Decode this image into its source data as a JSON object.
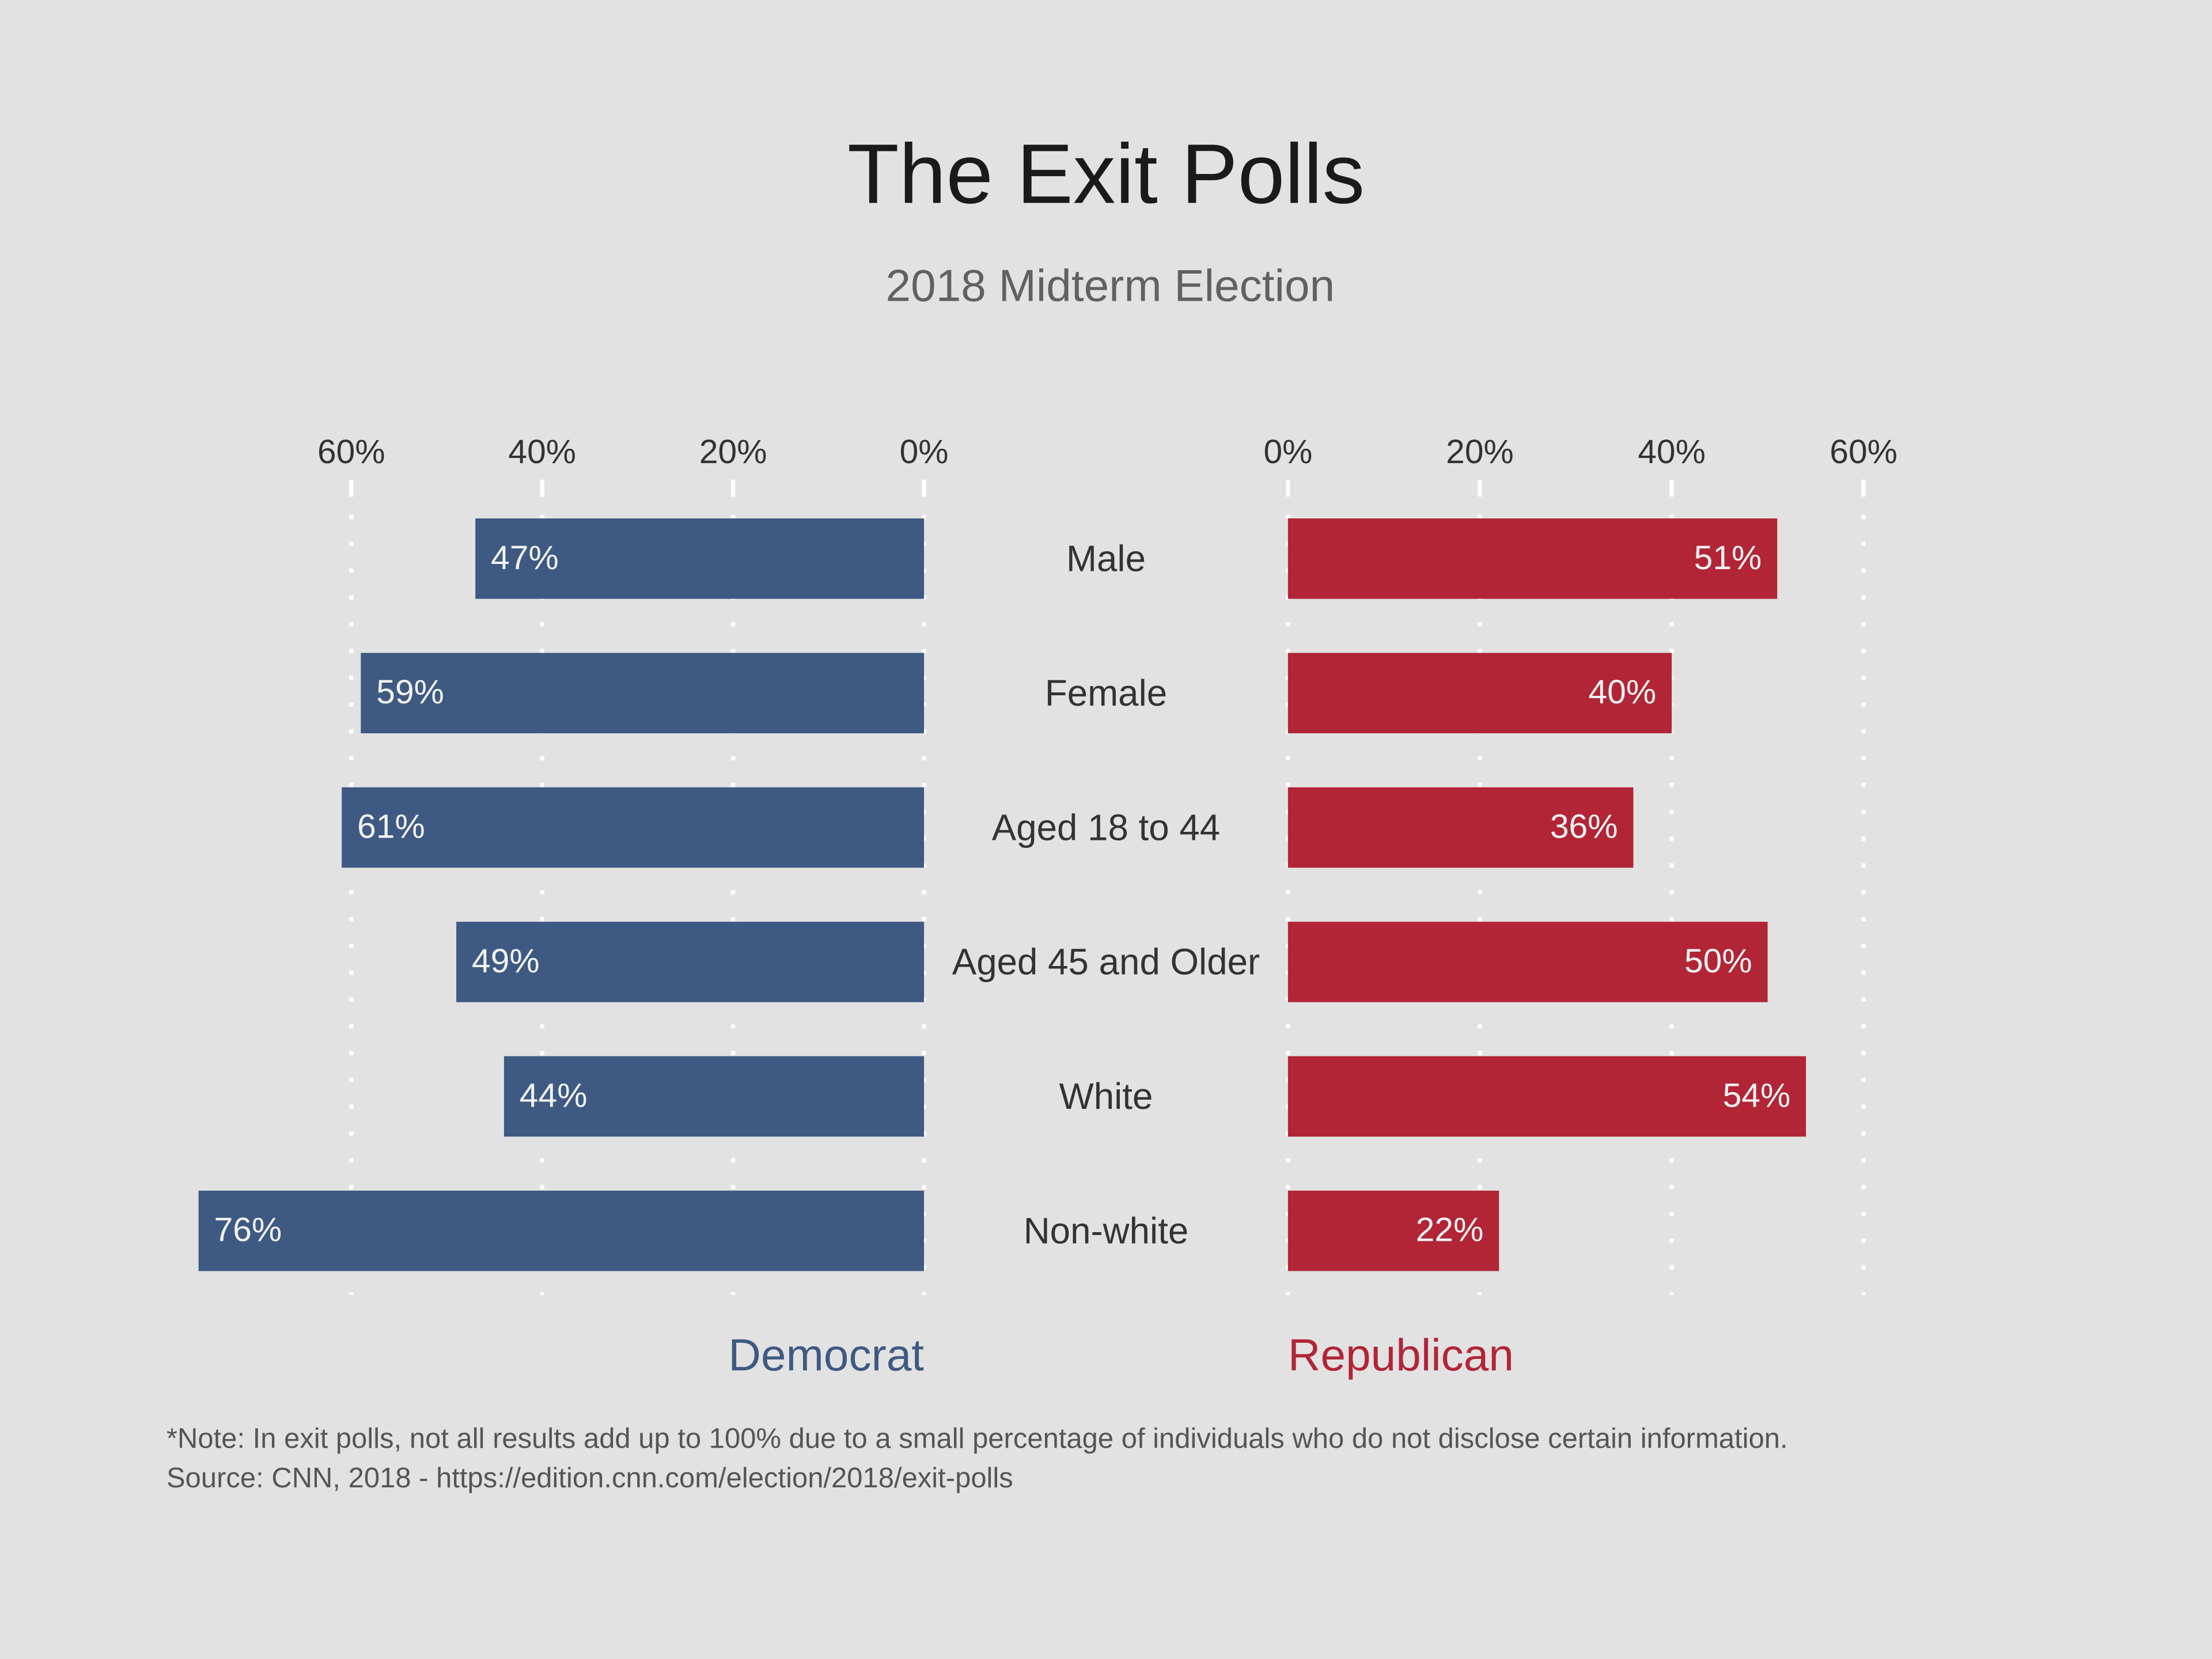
{
  "chart_data": {
    "type": "bar",
    "orientation": "horizontal",
    "layout": "butterfly",
    "title": "The Exit Polls",
    "subtitle": "2018 Midterm Election",
    "categories": [
      "Male",
      "Female",
      "Aged 18 to 44",
      "Aged 45 and Older",
      "White",
      "Non-white"
    ],
    "series": [
      {
        "name": "Democrat",
        "color": "#3f5a82",
        "values": [
          47,
          59,
          61,
          49,
          44,
          76
        ],
        "value_labels": [
          "47%",
          "59%",
          "61%",
          "49%",
          "44%",
          "76%"
        ]
      },
      {
        "name": "Republican",
        "color": "#b22536",
        "values": [
          51,
          40,
          36,
          50,
          54,
          22
        ],
        "value_labels": [
          "51%",
          "40%",
          "36%",
          "50%",
          "54%",
          "22%"
        ]
      }
    ],
    "xlim": [
      0,
      60
    ],
    "xticks": [
      {
        "value": 0,
        "label": "0%"
      },
      {
        "value": 20,
        "label": "20%"
      },
      {
        "value": 40,
        "label": "40%"
      },
      {
        "value": 60,
        "label": "60%"
      }
    ],
    "grid": true,
    "notes": [
      "*Note: In exit polls, not all results add up to 100% due to a small percentage of individuals who do not disclose certain information.",
      "Source: CNN, 2018 - https://edition.cnn.com/election/2018/exit-polls"
    ]
  }
}
